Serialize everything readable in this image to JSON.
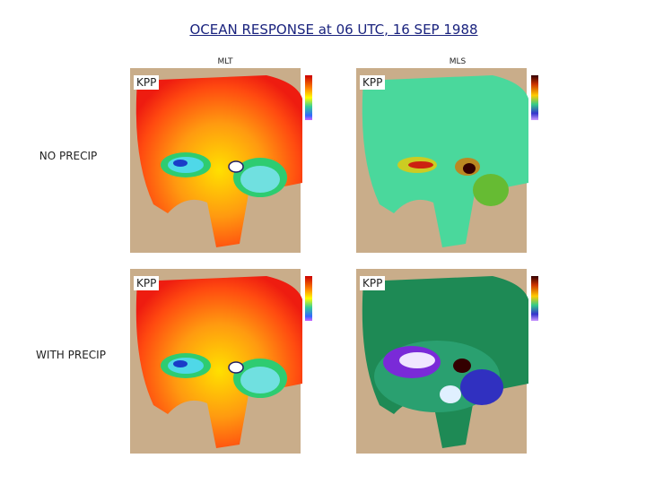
{
  "header": {
    "title": "OCEAN RESPONSE at 06 UTC, 16 SEP 1988"
  },
  "columns": [
    "MLT",
    "MLS"
  ],
  "rows": [
    "NO PRECIP",
    "WITH PRECIP"
  ],
  "panels": [
    {
      "label": "KPP"
    },
    {
      "label": "KPP"
    },
    {
      "label": "KPP"
    },
    {
      "label": "KPP"
    }
  ]
}
